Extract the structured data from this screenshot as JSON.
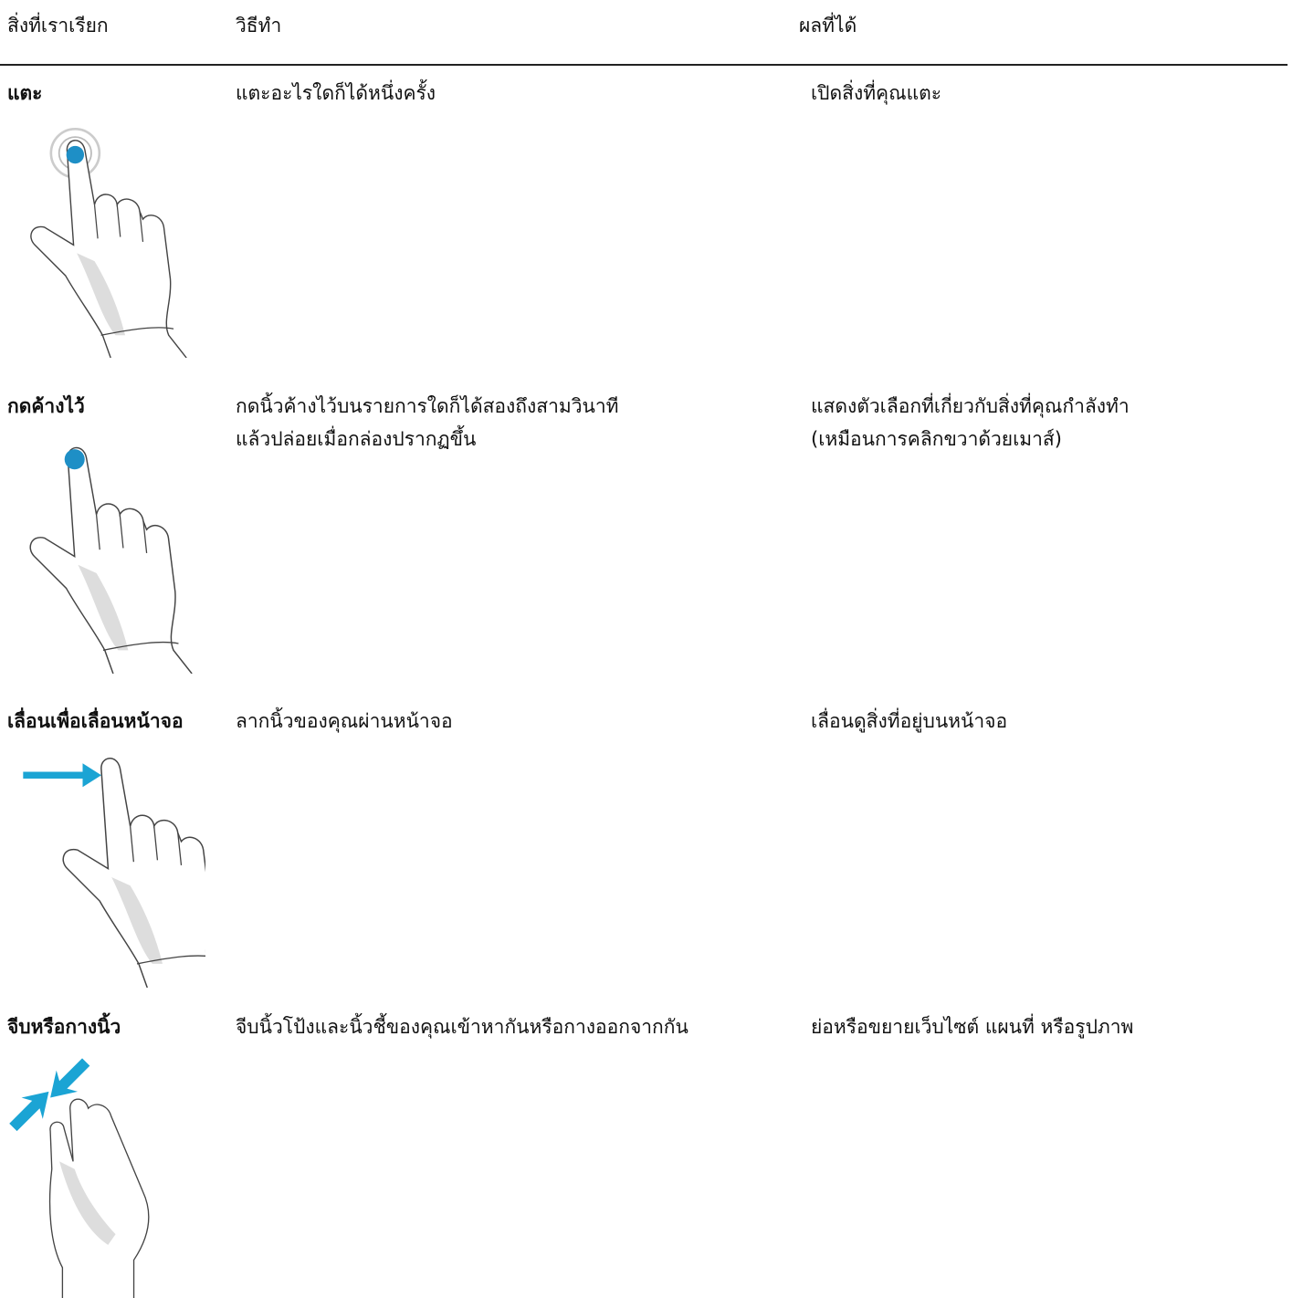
{
  "header": {
    "columns": [
      "สิ่งที่เราเรียก",
      "วิธีทำ",
      "ผลที่ได้"
    ]
  },
  "rows": [
    {
      "name": "แตะ",
      "how": [
        "แตะอะไรใดก็ได้หนึ่งครั้ง"
      ],
      "result": [
        "เปิดสิ่งที่คุณแตะ"
      ]
    },
    {
      "name": "กดค้างไว้",
      "how": [
        "กดนิ้วค้างไว้บนรายการใดก็ได้สองถึงสามวินาที",
        "แล้วปล่อยเมื่อกล่องปรากฏขึ้น"
      ],
      "result": [
        "แสดงตัวเลือกที่เกี่ยวกับสิ่งที่คุณกำลังทำ",
        "(เหมือนการคลิกขวาด้วยเมาส์)"
      ]
    },
    {
      "name": "เลื่อนเพื่อเลื่อนหน้าจอ",
      "how": [
        "ลากนิ้วของคุณผ่านหน้าจอ"
      ],
      "result": [
        "เลื่อนดูสิ่งที่อยู่บนหน้าจอ"
      ]
    },
    {
      "name": "จีบหรือกางนิ้ว",
      "how": [
        "จีบนิ้วโป้งและนิ้วชี้ของคุณเข้าหากันหรือกางออกจากกัน"
      ],
      "result": [
        "ย่อหรือขยายเว็บไซต์ แผนที่ หรือรูปภาพ"
      ]
    }
  ]
}
